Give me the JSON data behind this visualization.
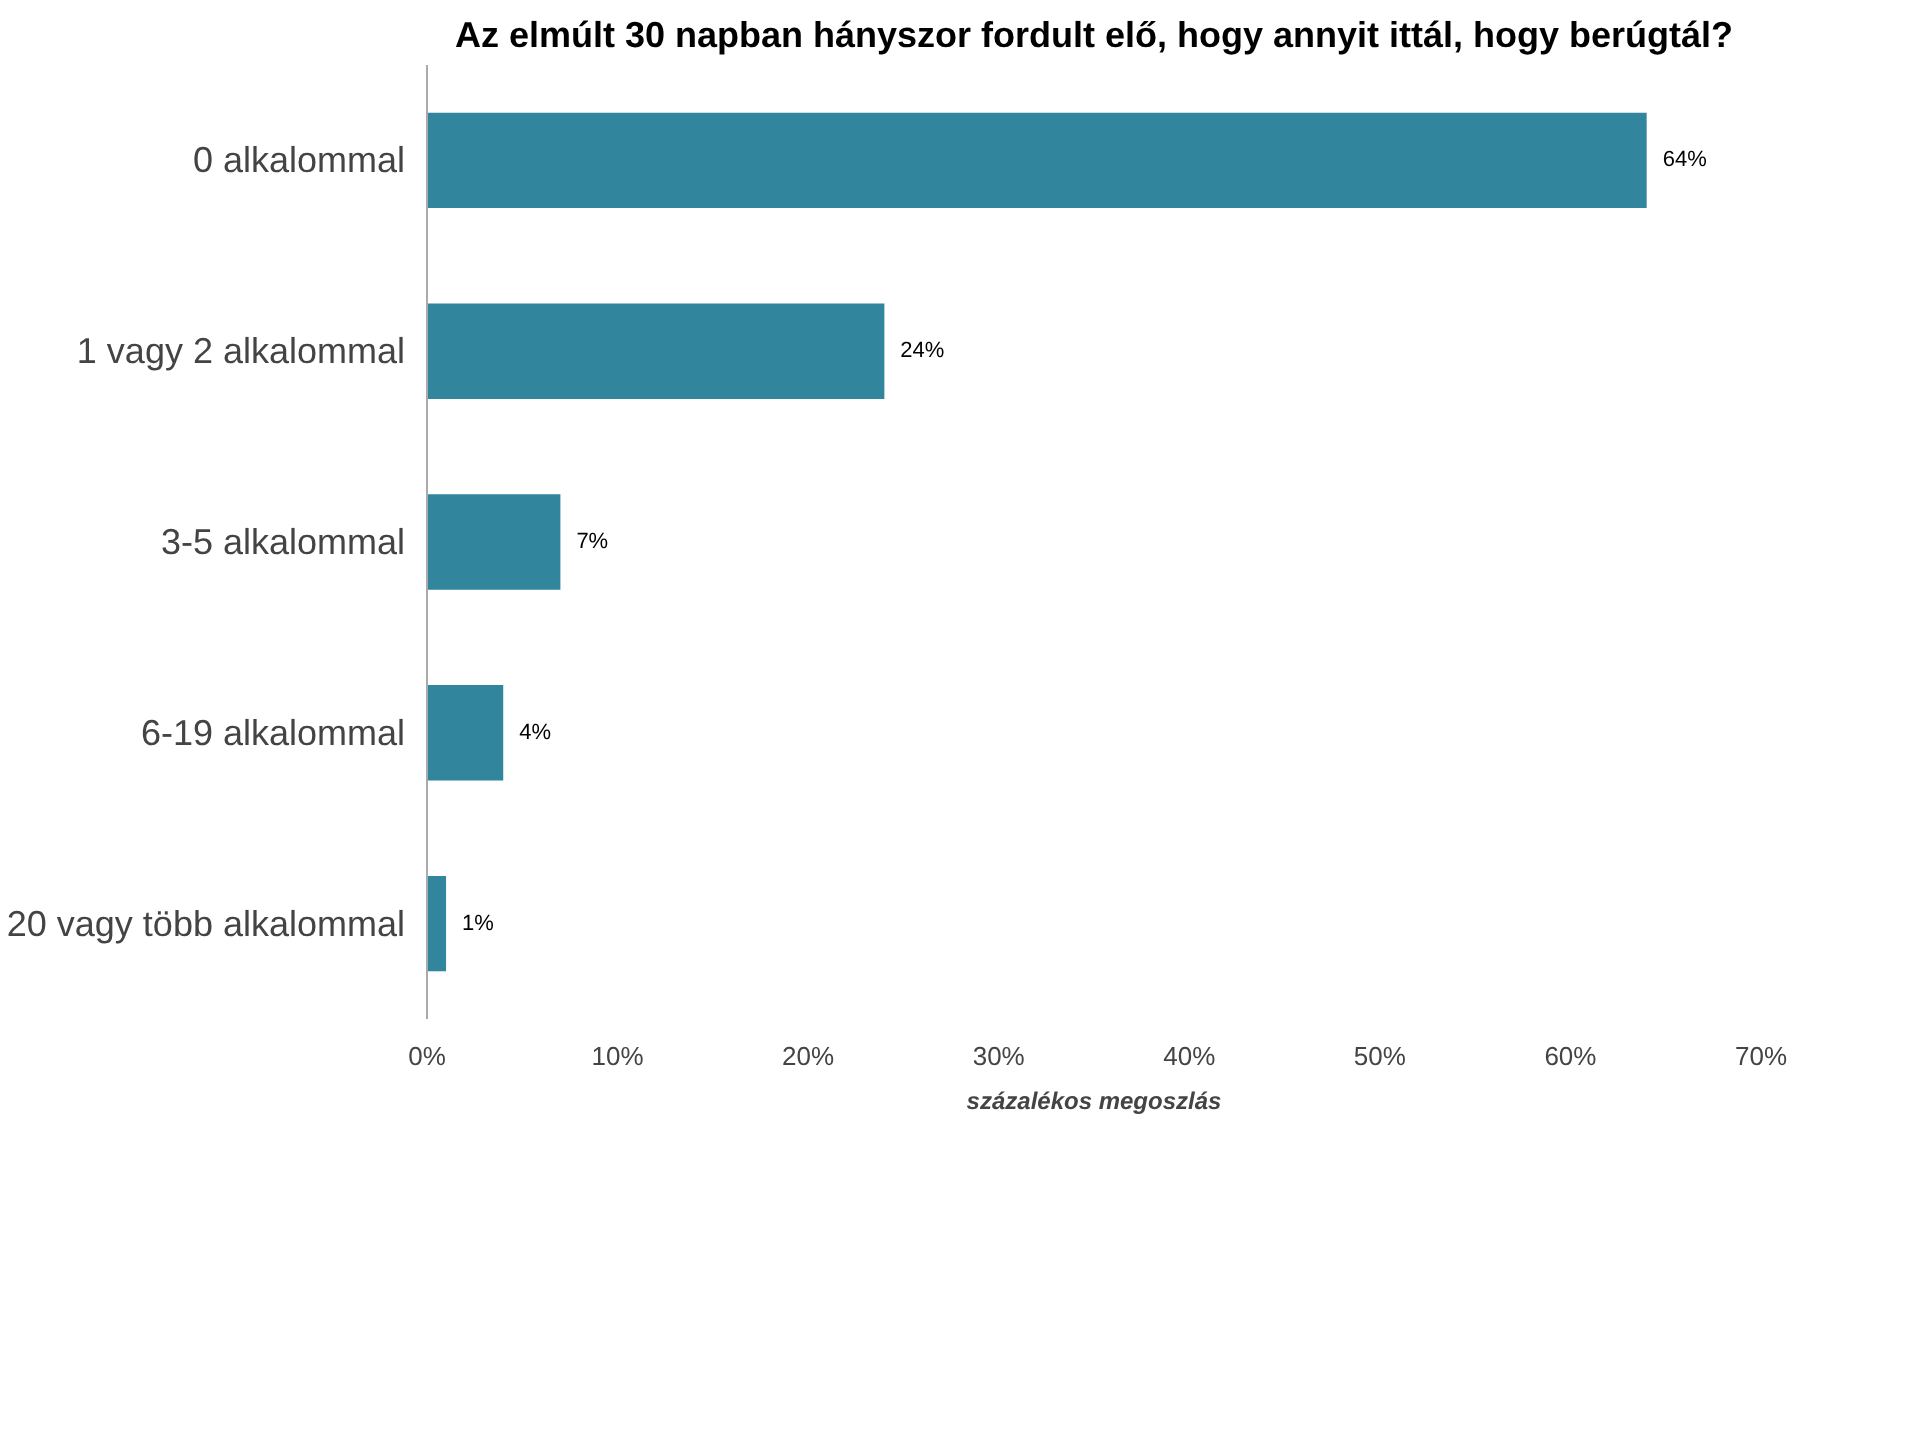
{
  "chart_data": {
    "type": "bar",
    "orientation": "horizontal",
    "title": "Az elmúlt 30 napban hányszor fordult elő, hogy annyit ittál, hogy berúgtál?",
    "categories": [
      "0 alkalommal",
      "1 vagy 2 alkalommal",
      "3-5 alkalommal",
      "6-19 alkalommal",
      "20 vagy több alkalommal"
    ],
    "values": [
      64,
      24,
      7,
      4,
      1
    ],
    "value_labels": [
      "64%",
      "24%",
      "7%",
      "4%",
      "1%"
    ],
    "color": "#31859c",
    "xlabel": "százalékos megoszlás",
    "xlim": [
      0,
      70
    ],
    "xticks": [
      {
        "value": 0,
        "label": "0%"
      },
      {
        "value": 10,
        "label": "10%"
      },
      {
        "value": 20,
        "label": "20%"
      },
      {
        "value": 30,
        "label": "30%"
      },
      {
        "value": 40,
        "label": "40%"
      },
      {
        "value": 50,
        "label": "50%"
      },
      {
        "value": 60,
        "label": "60%"
      },
      {
        "value": 70,
        "label": "70%"
      }
    ],
    "grid": false
  }
}
